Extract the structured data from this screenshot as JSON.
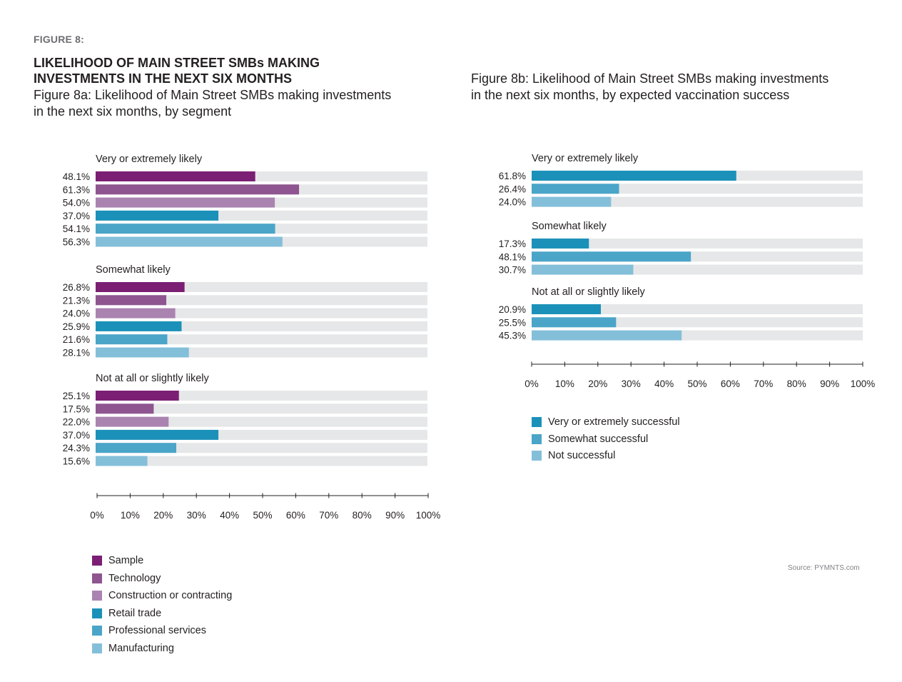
{
  "header": {
    "figure_label": "FIGURE 8:",
    "title_line1": "LIKELIHOOD OF MAIN STREET SMBs MAKING",
    "title_line2": "INVESTMENTS IN THE NEXT SIX MONTHS"
  },
  "source": "Source: PYMNTS.com",
  "chart_data": [
    {
      "id": "fig8a",
      "type": "bar",
      "orientation": "horizontal",
      "title": "Figure 8a: Likelihood of Main Street SMBs making investments in the next six months, by segment",
      "xlim": [
        0,
        100
      ],
      "x_ticks": [
        "0%",
        "10%",
        "20%",
        "30%",
        "40%",
        "50%",
        "60%",
        "70%",
        "80%",
        "90%",
        "100%"
      ],
      "xlabel": "",
      "ylabel": "",
      "legend_position": "bottom-left",
      "series_names": [
        "Sample",
        "Technology",
        "Construction or contracting",
        "Retail trade",
        "Professional services",
        "Manufacturing"
      ],
      "colors": [
        "#7b1f74",
        "#8e5590",
        "#ab83b1",
        "#1b91b9",
        "#4aa5c8",
        "#84bfda"
      ],
      "groups": [
        {
          "label": "Very or extremely likely",
          "values": [
            48.1,
            61.3,
            54.0,
            37.0,
            54.1,
            56.3
          ],
          "labels": [
            "48.1%",
            "61.3%",
            "54.0%",
            "37.0%",
            "54.1%",
            "56.3%"
          ]
        },
        {
          "label": "Somewhat likely",
          "values": [
            26.8,
            21.3,
            24.0,
            25.9,
            21.6,
            28.1
          ],
          "labels": [
            "26.8%",
            "21.3%",
            "24.0%",
            "25.9%",
            "21.6%",
            "28.1%"
          ]
        },
        {
          "label": "Not at all or slightly likely",
          "values": [
            25.1,
            17.5,
            22.0,
            37.0,
            24.3,
            15.6
          ],
          "labels": [
            "25.1%",
            "17.5%",
            "22.0%",
            "37.0%",
            "24.3%",
            "15.6%"
          ]
        }
      ]
    },
    {
      "id": "fig8b",
      "type": "bar",
      "orientation": "horizontal",
      "title": "Figure 8b: Likelihood of Main Street SMBs making investments in the next six months, by expected vaccination success",
      "xlim": [
        0,
        100
      ],
      "x_ticks": [
        "0%",
        "10%",
        "20%",
        "30%",
        "40%",
        "50%",
        "60%",
        "70%",
        "80%",
        "90%",
        "100%"
      ],
      "xlabel": "",
      "ylabel": "",
      "legend_position": "bottom-left",
      "series_names": [
        "Very or extremely successful",
        "Somewhat successful",
        "Not successful"
      ],
      "colors": [
        "#1b91b9",
        "#4aa5c8",
        "#84bfda"
      ],
      "groups": [
        {
          "label": "Very or extremely likely",
          "values": [
            61.8,
            26.4,
            24.0
          ],
          "labels": [
            "61.8%",
            "26.4%",
            "24.0%"
          ]
        },
        {
          "label": "Somewhat likely",
          "values": [
            17.3,
            48.1,
            30.7
          ],
          "labels": [
            "17.3%",
            "48.1%",
            "30.7%"
          ]
        },
        {
          "label": "Not at all or slightly likely",
          "values": [
            20.9,
            25.5,
            45.3
          ],
          "labels": [
            "20.9%",
            "25.5%",
            "45.3%"
          ]
        }
      ]
    }
  ],
  "track_color": "#e6e7e8"
}
